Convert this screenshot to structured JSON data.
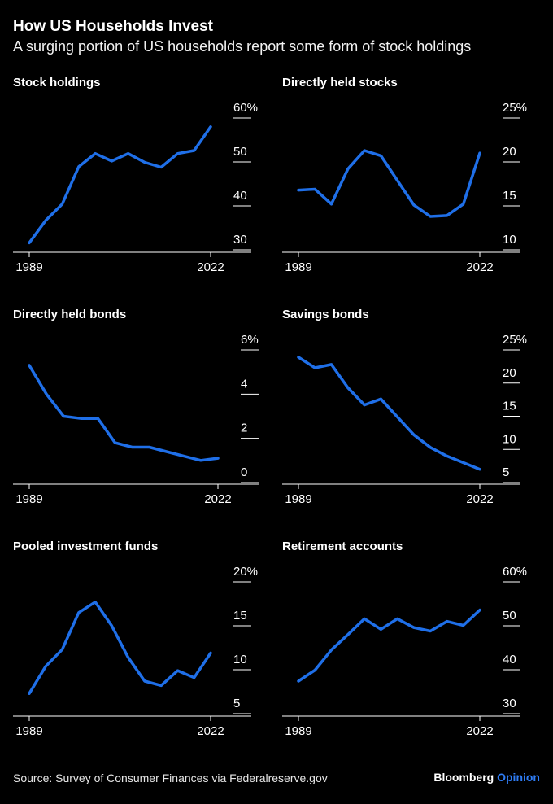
{
  "header": {
    "title": "How US Households Invest",
    "subtitle": "A surging portion of US households report some form of stock holdings"
  },
  "footer": {
    "source": "Source: Survey of Consumer Finances via Federalreserve.gov",
    "brand": "Bloomberg",
    "brand_accent": "Opinion"
  },
  "colors": {
    "line": "#1f6fe8",
    "accent": "#2f7df6",
    "background": "#000000",
    "axis": "#ffffff"
  },
  "chart_data": [
    {
      "type": "line",
      "title": "Stock holdings",
      "x": [
        1989,
        1992,
        1995,
        1998,
        2001,
        2004,
        2007,
        2010,
        2013,
        2016,
        2019,
        2022
      ],
      "x_tick_labels": [
        "1989",
        "2022"
      ],
      "y_ticks": [
        "60%",
        "50",
        "40",
        "30"
      ],
      "ylim": [
        30,
        60
      ],
      "series": [
        {
          "values": [
            31.6,
            36.7,
            40.4,
            48.9,
            51.9,
            50.2,
            51.9,
            49.9,
            48.8,
            51.9,
            52.6,
            58.0
          ]
        }
      ]
    },
    {
      "type": "line",
      "title": "Directly held stocks",
      "x": [
        1989,
        1992,
        1995,
        1998,
        2001,
        2004,
        2007,
        2010,
        2013,
        2016,
        2019,
        2022
      ],
      "x_tick_labels": [
        "1989",
        "2022"
      ],
      "y_ticks": [
        "25%",
        "20",
        "15",
        "10"
      ],
      "ylim": [
        10,
        25
      ],
      "series": [
        {
          "values": [
            16.8,
            16.9,
            15.2,
            19.2,
            21.3,
            20.7,
            17.9,
            15.1,
            13.8,
            13.9,
            15.2,
            21.0
          ]
        }
      ]
    },
    {
      "type": "line",
      "title": "Directly held bonds",
      "x": [
        1989,
        1992,
        1995,
        1998,
        2001,
        2004,
        2007,
        2010,
        2013,
        2016,
        2019,
        2022
      ],
      "x_tick_labels": [
        "1989",
        "2022"
      ],
      "y_ticks": [
        "6%",
        "4",
        "2",
        "0"
      ],
      "ylim": [
        0,
        6
      ],
      "series": [
        {
          "values": [
            5.3,
            4.0,
            3.0,
            2.9,
            2.9,
            1.8,
            1.6,
            1.6,
            1.4,
            1.2,
            1.0,
            1.1
          ]
        }
      ]
    },
    {
      "type": "line",
      "title": "Savings bonds",
      "x": [
        1989,
        1992,
        1995,
        1998,
        2001,
        2004,
        2007,
        2010,
        2013,
        2016,
        2019,
        2022
      ],
      "x_tick_labels": [
        "1989",
        "2022"
      ],
      "y_ticks": [
        "25%",
        "20",
        "15",
        "10",
        "5"
      ],
      "ylim": [
        5,
        25
      ],
      "series": [
        {
          "values": [
            23.9,
            22.3,
            22.8,
            19.3,
            16.7,
            17.6,
            14.9,
            12.2,
            10.3,
            9.0,
            8.0,
            7.0
          ]
        }
      ]
    },
    {
      "type": "line",
      "title": "Pooled investment funds",
      "x": [
        1989,
        1992,
        1995,
        1998,
        2001,
        2004,
        2007,
        2010,
        2013,
        2016,
        2019,
        2022
      ],
      "x_tick_labels": [
        "1989",
        "2022"
      ],
      "y_ticks": [
        "20%",
        "15",
        "10",
        "5"
      ],
      "ylim": [
        5,
        20
      ],
      "series": [
        {
          "values": [
            7.3,
            10.4,
            12.3,
            16.5,
            17.7,
            15.0,
            11.4,
            8.7,
            8.2,
            9.9,
            9.1,
            11.9
          ]
        }
      ]
    },
    {
      "type": "line",
      "title": "Retirement accounts",
      "x": [
        1989,
        1992,
        1995,
        1998,
        2001,
        2004,
        2007,
        2010,
        2013,
        2016,
        2019,
        2022
      ],
      "x_tick_labels": [
        "1989",
        "2022"
      ],
      "y_ticks": [
        "60%",
        "50",
        "40",
        "30"
      ],
      "ylim": [
        30,
        60
      ],
      "series": [
        {
          "values": [
            37.4,
            39.9,
            44.5,
            48.0,
            51.6,
            49.2,
            51.6,
            49.6,
            48.8,
            51.0,
            50.1,
            53.6
          ]
        }
      ]
    }
  ]
}
